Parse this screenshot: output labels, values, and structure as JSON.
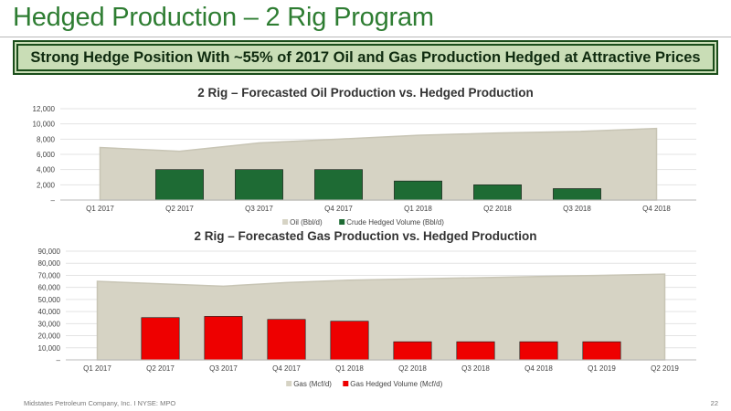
{
  "slide": {
    "title": "Hedged Production – 2 Rig Program",
    "banner": "Strong Hedge Position With ~55% of 2017 Oil and Gas Production Hedged at Attractive Prices",
    "footer": "Midstates Petroleum Company, Inc. I NYSE: MPO",
    "page_number": "22"
  },
  "colors": {
    "title_green": "#2e7d32",
    "banner_fill": "#c9ddb6",
    "banner_border": "#1a4d1a",
    "area_fill": "#d6d3c4",
    "oil_bar": "#1e6b34",
    "gas_bar": "#ee0000"
  },
  "chart_data": [
    {
      "type": "bar",
      "title": "2 Rig – Forecasted Oil Production vs. Hedged Production",
      "categories": [
        "Q1 2017",
        "Q2 2017",
        "Q3 2017",
        "Q4 2017",
        "Q1 2018",
        "Q2 2018",
        "Q3 2018",
        "Q4 2018"
      ],
      "yticks": [
        "12,000",
        "10,000",
        "8,000",
        "6,000",
        "4,000",
        "2,000",
        "–"
      ],
      "ylim": [
        0,
        12000
      ],
      "area_series": {
        "name": "Oil (Bbl/d)",
        "type": "area",
        "values": [
          6900,
          6400,
          7500,
          8000,
          8500,
          8800,
          9000,
          9400
        ]
      },
      "bar_series": {
        "name": "Crude Hedged Volume (Bbl/d)",
        "type": "bar",
        "values": [
          0,
          4000,
          4000,
          4000,
          2500,
          2000,
          1500,
          0
        ]
      },
      "legend_position": "bottom",
      "grid": true
    },
    {
      "type": "bar",
      "title": "2 Rig – Forecasted Gas Production vs. Hedged Production",
      "categories": [
        "Q1 2017",
        "Q2 2017",
        "Q3 2017",
        "Q4 2017",
        "Q1 2018",
        "Q2 2018",
        "Q3 2018",
        "Q4 2018",
        "Q1 2019",
        "Q2 2019"
      ],
      "yticks": [
        "90,000",
        "80,000",
        "70,000",
        "60,000",
        "50,000",
        "40,000",
        "30,000",
        "20,000",
        "10,000",
        "–"
      ],
      "ylim": [
        0,
        90000
      ],
      "area_series": {
        "name": "Gas (Mcf/d)",
        "type": "area",
        "values": [
          65000,
          63000,
          61000,
          64000,
          66000,
          67000,
          68000,
          69000,
          70000,
          71000
        ]
      },
      "bar_series": {
        "name": "Gas Hedged Volume (Mcf/d)",
        "type": "bar",
        "values": [
          0,
          35000,
          36000,
          33500,
          32000,
          15000,
          15000,
          15000,
          15000,
          0
        ]
      },
      "legend_position": "bottom",
      "grid": true
    }
  ]
}
